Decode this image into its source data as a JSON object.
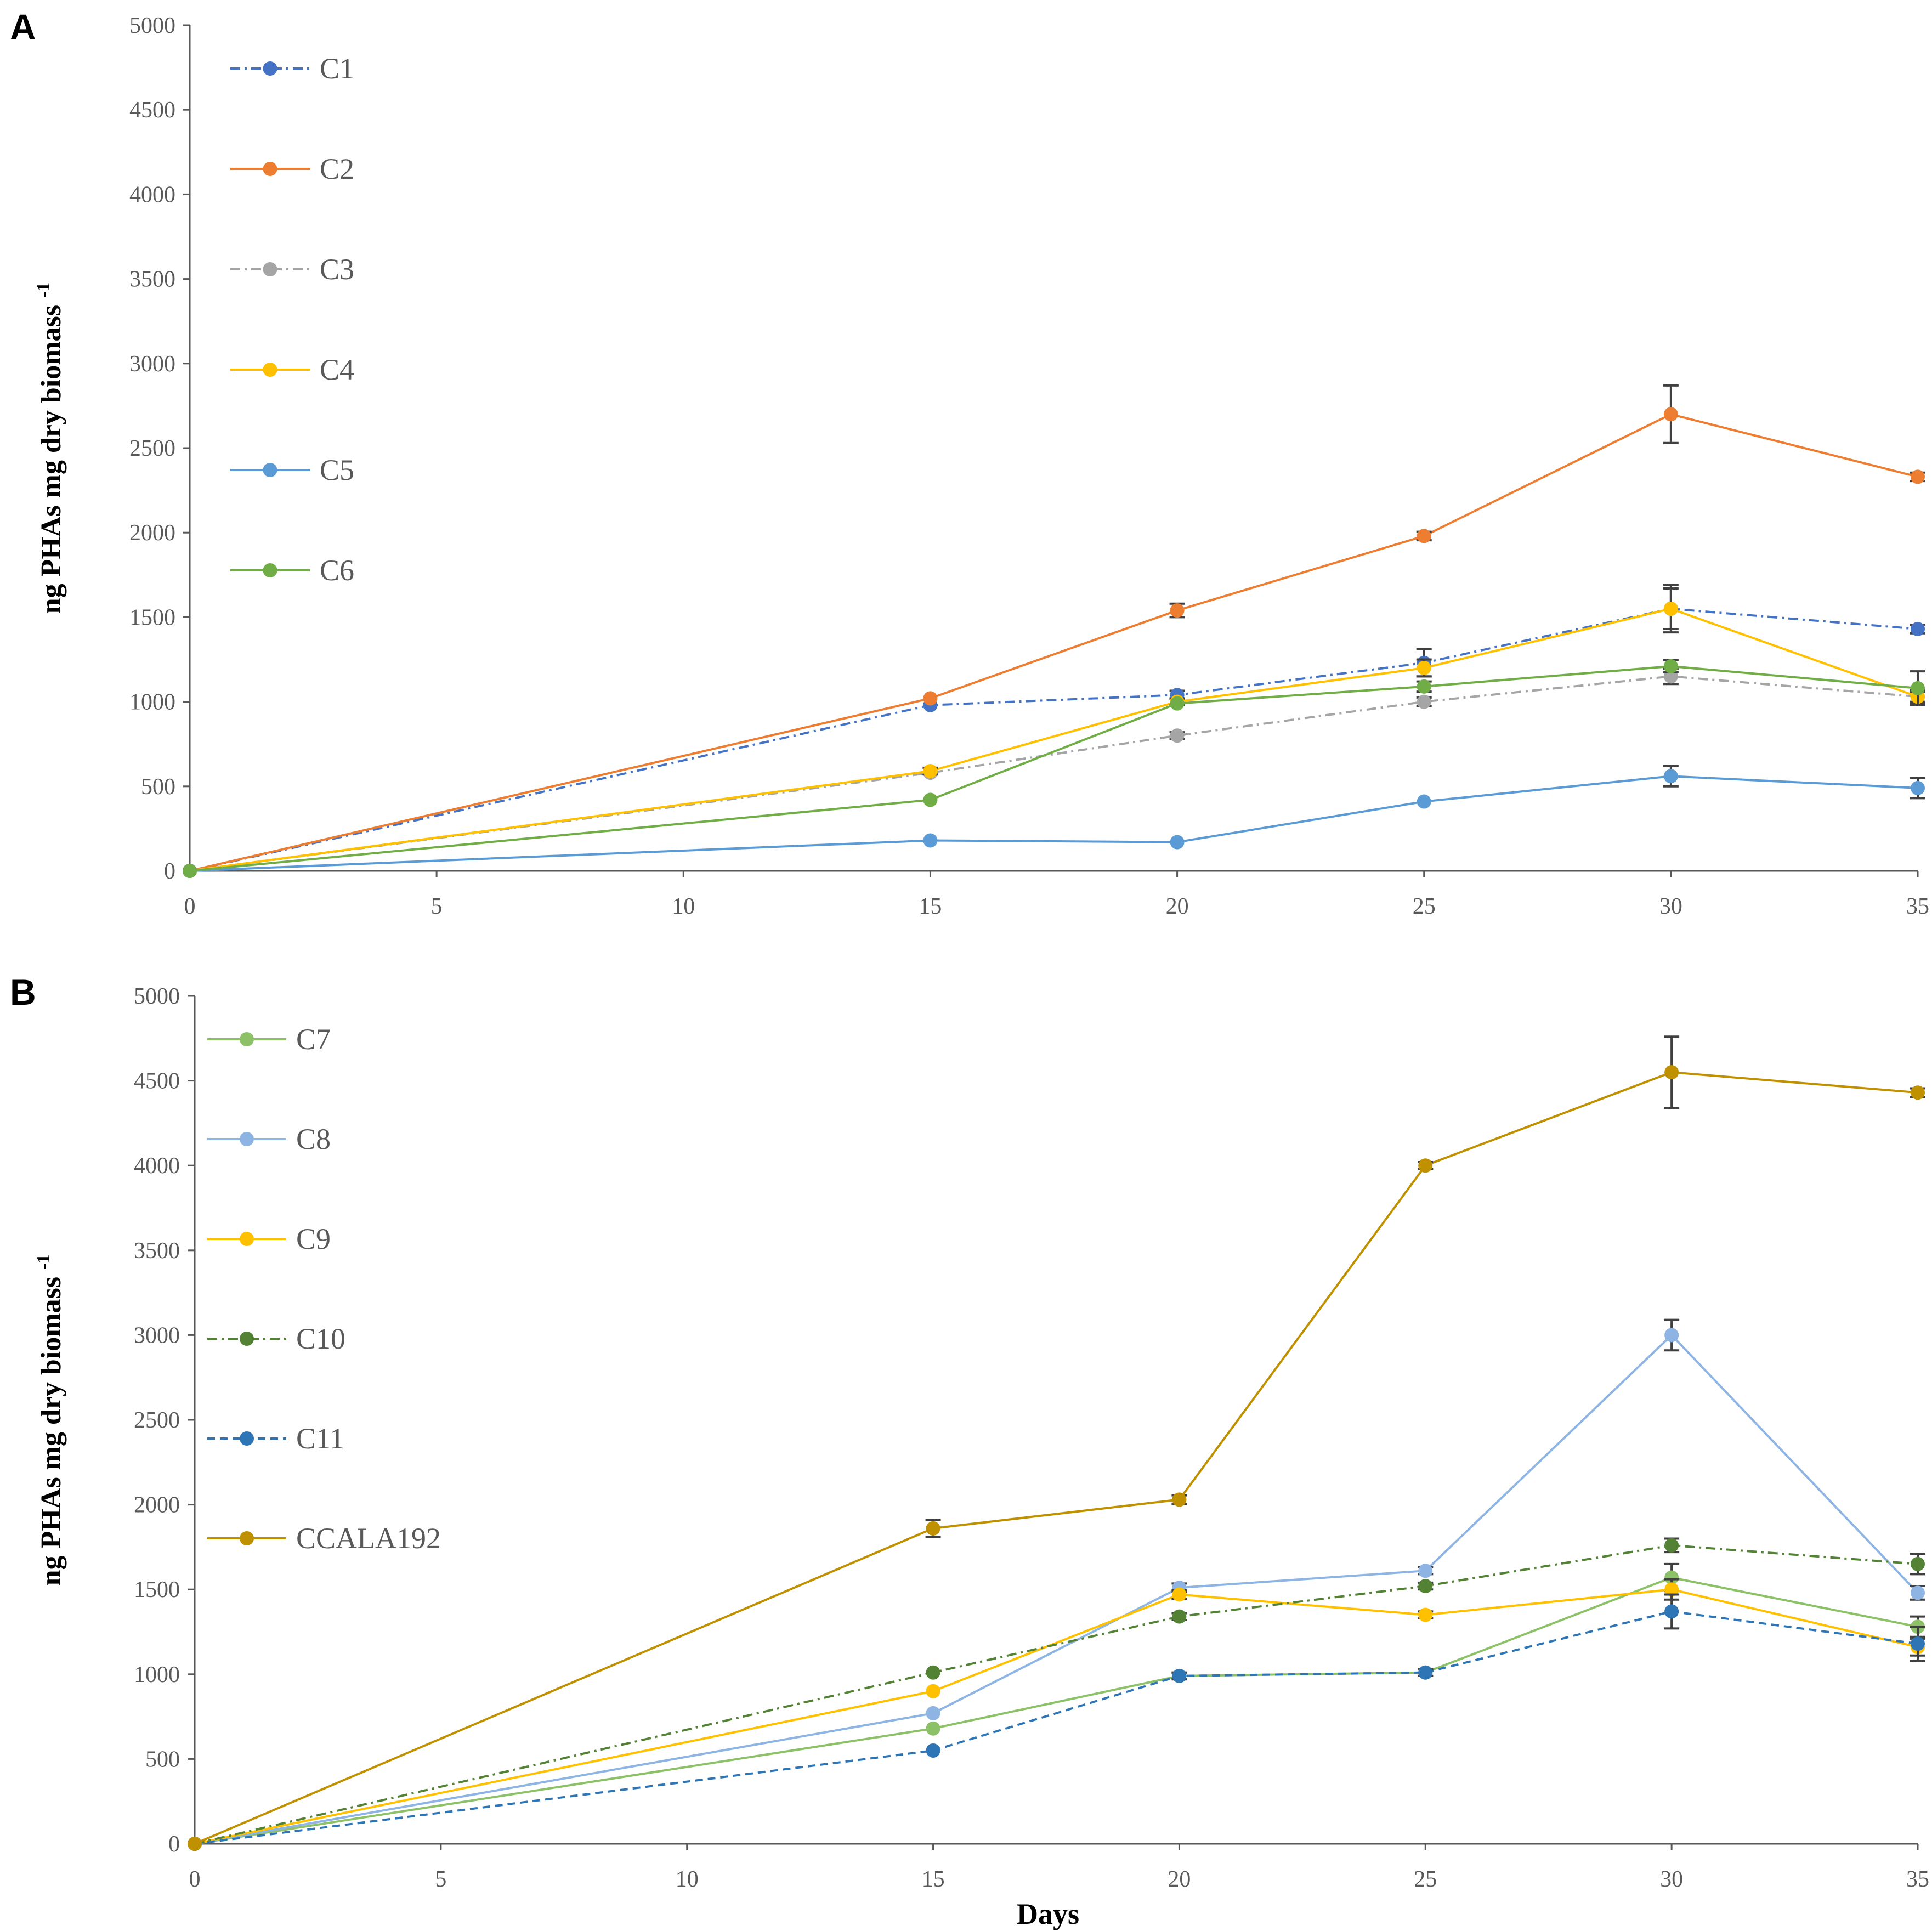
{
  "figure": {
    "panels": [
      {
        "label": "A",
        "ylabel": "ng PHAs mg dry biomass",
        "ylabel_sup": "-1",
        "xlabel": ""
      },
      {
        "label": "B",
        "ylabel": "ng PHAs mg dry biomass",
        "ylabel_sup": "-1",
        "xlabel": "Days"
      }
    ]
  },
  "chart_data": [
    {
      "type": "line",
      "panel": "A",
      "title": "",
      "xlabel": "",
      "ylabel": "ng PHAs mg dry biomass -1",
      "x_ticks": [
        0,
        5,
        10,
        15,
        20,
        25,
        30,
        35
      ],
      "y_ticks": [
        0,
        500,
        1000,
        1500,
        2000,
        2500,
        3000,
        3500,
        4000,
        4500,
        5000
      ],
      "xlim": [
        0,
        35
      ],
      "ylim": [
        0,
        5000
      ],
      "legend_position": "top-left",
      "x": [
        0,
        15,
        20,
        25,
        30,
        35
      ],
      "series": [
        {
          "name": "C1",
          "color": "#4472C4",
          "dash": "dashdot",
          "marker": "circle",
          "values": [
            0,
            980,
            1040,
            1230,
            1550,
            1430
          ],
          "errors": [
            0,
            15,
            25,
            80,
            120,
            25
          ]
        },
        {
          "name": "C2",
          "color": "#ED7D31",
          "dash": "solid",
          "marker": "circle",
          "values": [
            0,
            1020,
            1540,
            1980,
            2700,
            2330
          ],
          "errors": [
            0,
            15,
            40,
            25,
            170,
            25
          ]
        },
        {
          "name": "C3",
          "color": "#A5A5A5",
          "dash": "dashdot",
          "marker": "circle",
          "values": [
            0,
            580,
            800,
            1000,
            1150,
            1030
          ],
          "errors": [
            0,
            15,
            20,
            25,
            45,
            30
          ]
        },
        {
          "name": "C4",
          "color": "#FFC000",
          "dash": "solid",
          "marker": "circle",
          "values": [
            0,
            590,
            1000,
            1200,
            1550,
            1030
          ],
          "errors": [
            0,
            20,
            20,
            50,
            140,
            40
          ]
        },
        {
          "name": "C5",
          "color": "#5B9BD5",
          "dash": "solid",
          "marker": "circle",
          "values": [
            0,
            180,
            170,
            410,
            560,
            490
          ],
          "errors": [
            0,
            10,
            10,
            15,
            60,
            60
          ]
        },
        {
          "name": "C6",
          "color": "#70AD47",
          "dash": "solid",
          "marker": "circle",
          "values": [
            0,
            420,
            990,
            1090,
            1210,
            1080
          ],
          "errors": [
            0,
            15,
            15,
            30,
            35,
            100
          ]
        }
      ]
    },
    {
      "type": "line",
      "panel": "B",
      "title": "",
      "xlabel": "Days",
      "ylabel": "ng PHAs mg dry biomass -1",
      "x_ticks": [
        0,
        5,
        10,
        15,
        20,
        25,
        30,
        35
      ],
      "y_ticks": [
        0,
        500,
        1000,
        1500,
        2000,
        2500,
        3000,
        3500,
        4000,
        4500,
        5000
      ],
      "xlim": [
        0,
        35
      ],
      "ylim": [
        0,
        5000
      ],
      "legend_position": "top-left",
      "x": [
        0,
        15,
        20,
        25,
        30,
        35
      ],
      "series": [
        {
          "name": "C7",
          "color": "#8CC168",
          "dash": "solid",
          "marker": "circle",
          "values": [
            0,
            680,
            990,
            1010,
            1570,
            1280
          ],
          "errors": [
            0,
            15,
            20,
            20,
            80,
            60
          ]
        },
        {
          "name": "C8",
          "color": "#8DB4E2",
          "dash": "solid",
          "marker": "circle",
          "values": [
            0,
            770,
            1510,
            1610,
            3000,
            1480
          ],
          "errors": [
            0,
            15,
            25,
            20,
            90,
            40
          ]
        },
        {
          "name": "C9",
          "color": "#FFC000",
          "dash": "solid",
          "marker": "circle",
          "values": [
            0,
            900,
            1470,
            1350,
            1500,
            1160
          ],
          "errors": [
            0,
            15,
            25,
            20,
            60,
            50
          ]
        },
        {
          "name": "C10",
          "color": "#548235",
          "dash": "dashdot",
          "marker": "circle",
          "values": [
            0,
            1010,
            1340,
            1520,
            1760,
            1650
          ],
          "errors": [
            0,
            15,
            20,
            20,
            40,
            60
          ]
        },
        {
          "name": "C11",
          "color": "#2E75B6",
          "dash": "dashed",
          "marker": "circle",
          "values": [
            0,
            550,
            990,
            1010,
            1370,
            1180
          ],
          "errors": [
            0,
            15,
            20,
            20,
            100,
            100
          ]
        },
        {
          "name": "CCALA192",
          "color": "#BF9000",
          "dash": "solid",
          "marker": "circle",
          "values": [
            0,
            1860,
            2030,
            4000,
            4550,
            4430
          ],
          "errors": [
            0,
            50,
            25,
            20,
            210,
            25
          ]
        }
      ]
    }
  ]
}
